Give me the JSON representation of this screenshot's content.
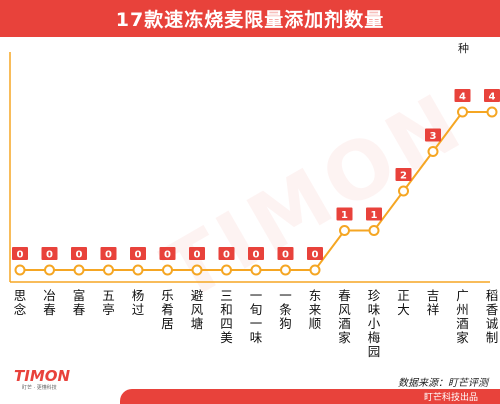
{
  "title": "17款速冻烧麦限量添加剂数量",
  "unit": "种",
  "source": "数据来源：盯芒评测",
  "footer": "盯芒科技出品",
  "watermark": "TIMON",
  "logo": {
    "text": "TIMON",
    "sub": "盯芒 · 更懂科技"
  },
  "colors": {
    "accent": "#e8423b",
    "line": "#f5a623",
    "bg": "#ffffff"
  },
  "chart_data": {
    "type": "line",
    "categories": [
      "思念",
      "冶春",
      "富春",
      "五亭",
      "杨过",
      "乐肴居",
      "避风塘",
      "三和四美",
      "一旬一味",
      "一条狗",
      "东来顺",
      "春风酒家",
      "珍味小梅园",
      "正大",
      "吉祥",
      "广州酒家",
      "稻香诚制"
    ],
    "values": [
      0,
      0,
      0,
      0,
      0,
      0,
      0,
      0,
      0,
      0,
      0,
      1,
      1,
      2,
      3,
      4,
      4
    ],
    "ylim": [
      0,
      4
    ],
    "title": "17款速冻烧麦限量添加剂数量",
    "xlabel": "",
    "ylabel": "种",
    "grid": false,
    "legend": "none"
  }
}
